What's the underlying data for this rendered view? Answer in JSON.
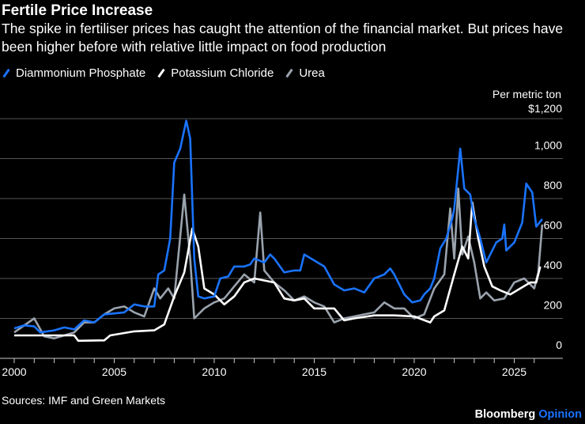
{
  "header": {
    "title": "Fertile Price Increase",
    "subtitle": "The spike in fertiliser prices has caught the attention of the financial market. But prices have been higher before with relative little impact on food production"
  },
  "footer": {
    "source": "Sources: IMF and Green Markets",
    "brand": "Bloomberg",
    "brand_suffix": "Opinion"
  },
  "chart_data": {
    "type": "line",
    "title": "Fertile Price Increase",
    "ylabel": "Per metric ton",
    "ylim": [
      0,
      1200
    ],
    "xlim": [
      2000,
      2027
    ],
    "yticks": [
      0,
      200,
      400,
      600,
      800,
      1000,
      1200
    ],
    "ytick_labels": [
      "0",
      "200",
      "400",
      "600",
      "800",
      "1,000",
      "$1,200"
    ],
    "xticks": [
      2000,
      2005,
      2010,
      2015,
      2020,
      2025
    ],
    "xtick_labels": [
      "2000",
      "2005",
      "2010",
      "2015",
      "2020",
      "2025"
    ],
    "grid": true,
    "legend": "top-left",
    "series": [
      {
        "name": "Diammonium Phosphate",
        "color": "#1a73ff",
        "points": [
          [
            2000,
            150
          ],
          [
            2000.5,
            165
          ],
          [
            2001,
            160
          ],
          [
            2001.3,
            130
          ],
          [
            2002,
            140
          ],
          [
            2002.5,
            155
          ],
          [
            2003,
            145
          ],
          [
            2003.5,
            190
          ],
          [
            2004,
            180
          ],
          [
            2004.5,
            220
          ],
          [
            2005,
            225
          ],
          [
            2005.5,
            230
          ],
          [
            2006,
            270
          ],
          [
            2006.5,
            260
          ],
          [
            2007,
            260
          ],
          [
            2007.2,
            420
          ],
          [
            2007.5,
            440
          ],
          [
            2007.8,
            600
          ],
          [
            2008,
            980
          ],
          [
            2008.3,
            1050
          ],
          [
            2008.6,
            1190
          ],
          [
            2008.8,
            1100
          ],
          [
            2009,
            500
          ],
          [
            2009.2,
            310
          ],
          [
            2009.5,
            300
          ],
          [
            2010,
            310
          ],
          [
            2010.3,
            400
          ],
          [
            2010.7,
            410
          ],
          [
            2011,
            460
          ],
          [
            2011.5,
            460
          ],
          [
            2011.8,
            470
          ],
          [
            2012,
            500
          ],
          [
            2012.5,
            480
          ],
          [
            2012.8,
            520
          ],
          [
            2013,
            500
          ],
          [
            2013.5,
            430
          ],
          [
            2014,
            440
          ],
          [
            2014.3,
            440
          ],
          [
            2014.5,
            520
          ],
          [
            2015,
            490
          ],
          [
            2015.5,
            460
          ],
          [
            2016,
            370
          ],
          [
            2016.5,
            340
          ],
          [
            2017,
            350
          ],
          [
            2017.5,
            330
          ],
          [
            2018,
            400
          ],
          [
            2018.5,
            420
          ],
          [
            2018.8,
            450
          ],
          [
            2019,
            420
          ],
          [
            2019.5,
            320
          ],
          [
            2019.9,
            280
          ],
          [
            2020.3,
            290
          ],
          [
            2020.5,
            320
          ],
          [
            2020.8,
            350
          ],
          [
            2021,
            400
          ],
          [
            2021.3,
            550
          ],
          [
            2021.6,
            600
          ],
          [
            2021.9,
            700
          ],
          [
            2022,
            750
          ],
          [
            2022.2,
            950
          ],
          [
            2022.3,
            1050
          ],
          [
            2022.5,
            850
          ],
          [
            2022.8,
            820
          ],
          [
            2023,
            700
          ],
          [
            2023.3,
            600
          ],
          [
            2023.6,
            480
          ],
          [
            2023.9,
            540
          ],
          [
            2024.1,
            580
          ],
          [
            2024.4,
            600
          ],
          [
            2024.5,
            670
          ],
          [
            2024.6,
            540
          ],
          [
            2025,
            580
          ],
          [
            2025.4,
            680
          ],
          [
            2025.6,
            875
          ],
          [
            2025.9,
            830
          ],
          [
            2026.1,
            660
          ],
          [
            2026.4,
            697
          ]
        ]
      },
      {
        "name": "Potassium Chloride",
        "color": "#ffffff",
        "points": [
          [
            2000,
            115
          ],
          [
            2003,
            115
          ],
          [
            2003.2,
            88
          ],
          [
            2004.5,
            90
          ],
          [
            2004.8,
            115
          ],
          [
            2006,
            135
          ],
          [
            2007,
            140
          ],
          [
            2007.5,
            170
          ],
          [
            2008,
            310
          ],
          [
            2008.5,
            430
          ],
          [
            2008.9,
            650
          ],
          [
            2009.2,
            560
          ],
          [
            2009.5,
            350
          ],
          [
            2010,
            320
          ],
          [
            2010.5,
            270
          ],
          [
            2011,
            310
          ],
          [
            2011.5,
            380
          ],
          [
            2012,
            400
          ],
          [
            2013,
            380
          ],
          [
            2013.5,
            300
          ],
          [
            2014,
            290
          ],
          [
            2014.5,
            300
          ],
          [
            2015,
            250
          ],
          [
            2016,
            250
          ],
          [
            2016.5,
            190
          ],
          [
            2017,
            200
          ],
          [
            2018,
            215
          ],
          [
            2019,
            215
          ],
          [
            2020,
            210
          ],
          [
            2020.8,
            180
          ],
          [
            2021,
            210
          ],
          [
            2021.5,
            240
          ],
          [
            2022,
            420
          ],
          [
            2022.4,
            560
          ],
          [
            2022.7,
            500
          ],
          [
            2022.9,
            780
          ],
          [
            2023.2,
            600
          ],
          [
            2023.5,
            460
          ],
          [
            2023.9,
            360
          ],
          [
            2024.3,
            340
          ],
          [
            2024.8,
            320
          ],
          [
            2025.3,
            350
          ],
          [
            2025.8,
            380
          ],
          [
            2026.1,
            380
          ],
          [
            2026.3,
            460
          ]
        ]
      },
      {
        "name": "Urea",
        "color": "#9aa3ad",
        "points": [
          [
            2000,
            130
          ],
          [
            2001,
            200
          ],
          [
            2001.5,
            110
          ],
          [
            2002,
            100
          ],
          [
            2003,
            130
          ],
          [
            2003.5,
            180
          ],
          [
            2004,
            180
          ],
          [
            2004.5,
            220
          ],
          [
            2005,
            250
          ],
          [
            2005.5,
            260
          ],
          [
            2006,
            230
          ],
          [
            2006.5,
            210
          ],
          [
            2007,
            350
          ],
          [
            2007.3,
            300
          ],
          [
            2007.7,
            350
          ],
          [
            2008,
            300
          ],
          [
            2008.5,
            820
          ],
          [
            2008.8,
            500
          ],
          [
            2009,
            200
          ],
          [
            2009.5,
            250
          ],
          [
            2010,
            280
          ],
          [
            2010.5,
            300
          ],
          [
            2011,
            360
          ],
          [
            2011.5,
            420
          ],
          [
            2012,
            380
          ],
          [
            2012.3,
            730
          ],
          [
            2012.5,
            440
          ],
          [
            2013,
            380
          ],
          [
            2013.5,
            340
          ],
          [
            2014,
            290
          ],
          [
            2014.5,
            310
          ],
          [
            2015,
            280
          ],
          [
            2015.5,
            260
          ],
          [
            2016,
            180
          ],
          [
            2016.5,
            200
          ],
          [
            2017,
            210
          ],
          [
            2017.5,
            220
          ],
          [
            2018,
            230
          ],
          [
            2018.5,
            280
          ],
          [
            2019,
            250
          ],
          [
            2019.5,
            250
          ],
          [
            2020,
            200
          ],
          [
            2020.5,
            220
          ],
          [
            2021,
            350
          ],
          [
            2021.5,
            420
          ],
          [
            2021.8,
            750
          ],
          [
            2022,
            500
          ],
          [
            2022.2,
            850
          ],
          [
            2022.4,
            520
          ],
          [
            2022.7,
            610
          ],
          [
            2023,
            480
          ],
          [
            2023.3,
            300
          ],
          [
            2023.6,
            330
          ],
          [
            2024,
            290
          ],
          [
            2024.5,
            300
          ],
          [
            2025,
            380
          ],
          [
            2025.5,
            400
          ],
          [
            2026,
            350
          ],
          [
            2026.2,
            430
          ],
          [
            2026.4,
            670
          ]
        ]
      }
    ]
  }
}
